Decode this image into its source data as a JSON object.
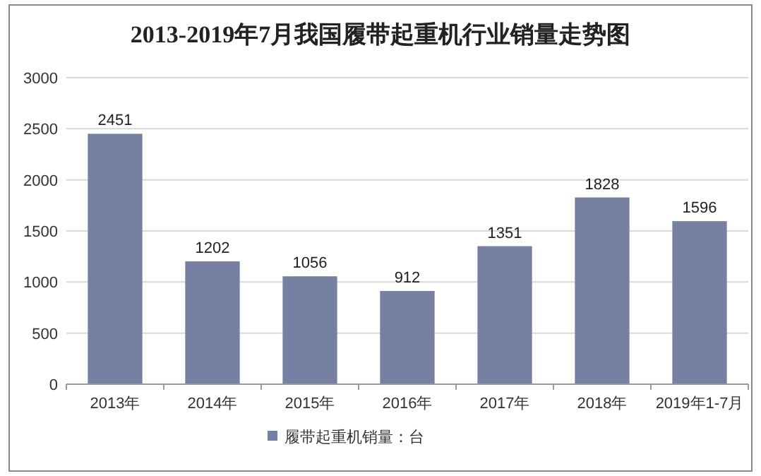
{
  "chart_data": {
    "type": "bar",
    "title": "2013-2019年7月我国履带起重机行业销量走势图",
    "categories": [
      "2013年",
      "2014年",
      "2015年",
      "2016年",
      "2017年",
      "2018年",
      "2019年1-7月"
    ],
    "series": [
      {
        "name": "履带起重机销量：台",
        "color": "#7680a3",
        "values": [
          2451,
          1202,
          1056,
          912,
          1351,
          1828,
          1596
        ]
      }
    ],
    "ylim": [
      0,
      3000
    ],
    "yticks": [
      0,
      500,
      1000,
      1500,
      2000,
      2500,
      3000
    ],
    "grid": "y",
    "legend": "bottom",
    "data_labels": true
  }
}
